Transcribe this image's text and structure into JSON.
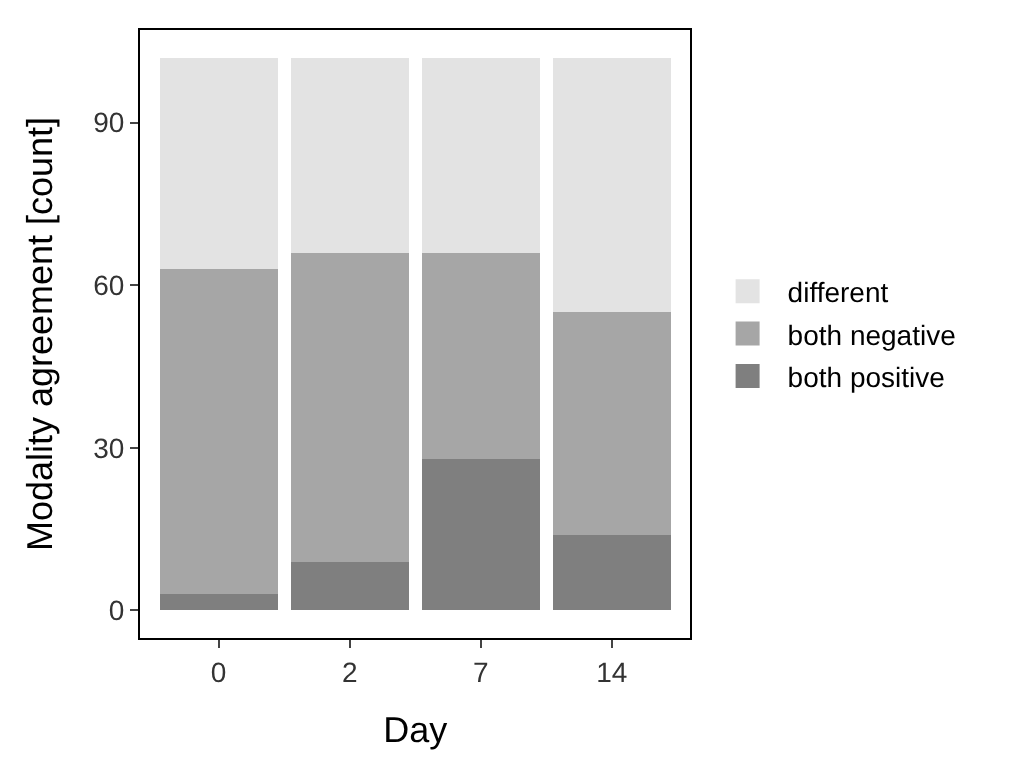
{
  "chart_data": {
    "type": "bar",
    "stacked": true,
    "xlabel": "Day",
    "ylabel": "Modality agreement [count]",
    "categories": [
      "0",
      "2",
      "7",
      "14"
    ],
    "series": [
      {
        "name": "both positive",
        "color": "#7f7f7f",
        "values": [
          3,
          9,
          28,
          14
        ]
      },
      {
        "name": "both negative",
        "color": "#a6a6a6",
        "values": [
          60,
          57,
          38,
          41
        ]
      },
      {
        "name": "different",
        "color": "#e3e3e3",
        "values": [
          39,
          36,
          36,
          47
        ]
      }
    ],
    "ylim": [
      -5.1,
      107.1
    ],
    "yticks": [
      0,
      30,
      60,
      90
    ],
    "legend": "right"
  }
}
